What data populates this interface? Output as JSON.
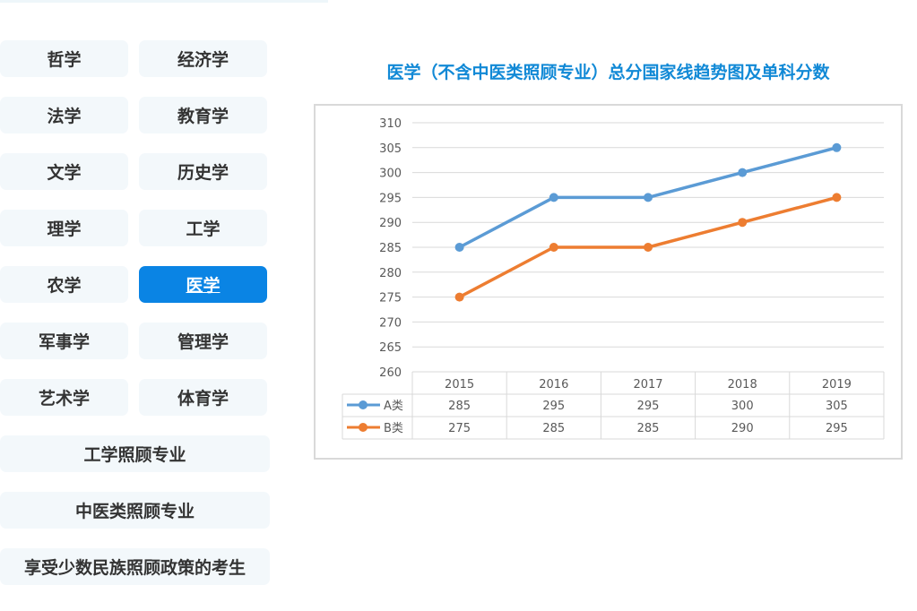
{
  "sidebar": {
    "grid": [
      {
        "label": "哲学",
        "active": false
      },
      {
        "label": "经济学",
        "active": false
      },
      {
        "label": "法学",
        "active": false
      },
      {
        "label": "教育学",
        "active": false
      },
      {
        "label": "文学",
        "active": false
      },
      {
        "label": "历史学",
        "active": false
      },
      {
        "label": "理学",
        "active": false
      },
      {
        "label": "工学",
        "active": false
      },
      {
        "label": "农学",
        "active": false
      },
      {
        "label": "医学",
        "active": true
      },
      {
        "label": "军事学",
        "active": false
      },
      {
        "label": "管理学",
        "active": false
      },
      {
        "label": "艺术学",
        "active": false
      },
      {
        "label": "体育学",
        "active": false
      }
    ],
    "wide": [
      {
        "label": "工学照顾专业"
      },
      {
        "label": "中医类照顾专业"
      },
      {
        "label": "享受少数民族照顾政策的考生"
      }
    ]
  },
  "colors": {
    "accent": "#0a84e4",
    "title": "#1189d6",
    "series_a": "#5b9bd5",
    "series_b": "#ed7d31",
    "button_bg": "#f3f8fb"
  },
  "chart_data": {
    "type": "line",
    "title": "医学（不含中医类照顾专业）总分国家线趋势图及单科分数",
    "categories": [
      "2015",
      "2016",
      "2017",
      "2018",
      "2019"
    ],
    "series": [
      {
        "name": "A类",
        "values": [
          285,
          295,
          295,
          300,
          305
        ]
      },
      {
        "name": "B类",
        "values": [
          275,
          285,
          285,
          290,
          295
        ]
      }
    ],
    "xlabel": "",
    "ylabel": "",
    "ylim": [
      260,
      310
    ],
    "yticks": [
      260,
      265,
      270,
      275,
      280,
      285,
      290,
      295,
      300,
      305,
      310
    ],
    "grid": true,
    "legend_position": "data-table"
  }
}
